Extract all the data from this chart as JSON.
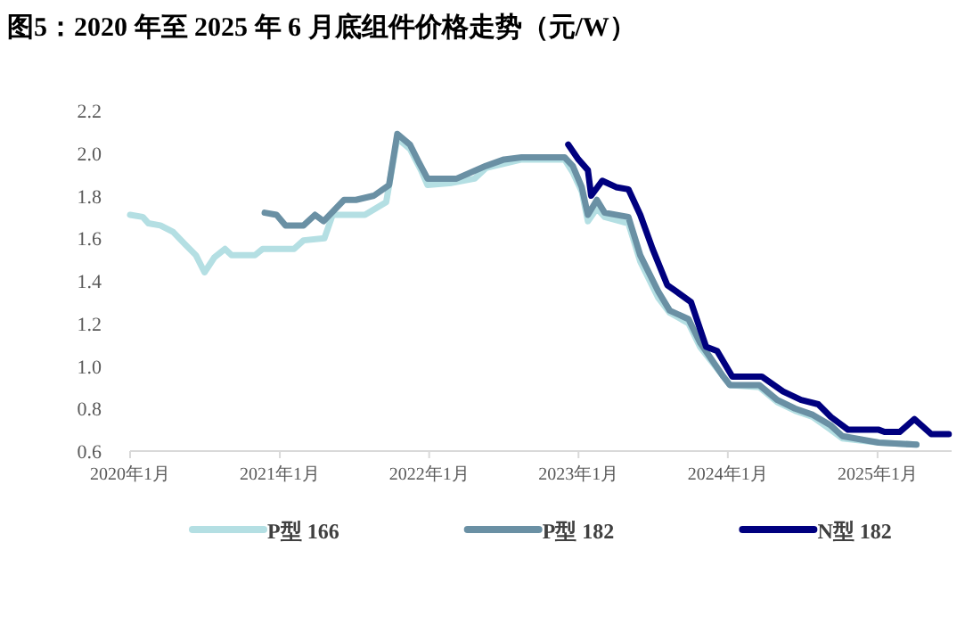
{
  "chart_data": {
    "type": "line",
    "title": "图5：2020 年至 2025 年 6 月底组件价格走势（元/W）",
    "xlim": [
      "2020-01-01",
      "2025-07-01"
    ],
    "xticks": [
      {
        "value": "2020-01",
        "label": "2020年1月"
      },
      {
        "value": "2021-01",
        "label": "2021年1月"
      },
      {
        "value": "2022-01",
        "label": "2022年1月"
      },
      {
        "value": "2023-01",
        "label": "2023年1月"
      },
      {
        "value": "2024-01",
        "label": "2024年1月"
      },
      {
        "value": "2025-01",
        "label": "2025年1月"
      }
    ],
    "ylim": [
      0.6,
      2.2
    ],
    "yticks": [
      0.6,
      0.8,
      {
        "value": 1,
        "label": "1.0"
      },
      1.2,
      1.4,
      1.6,
      1.8,
      {
        "value": 2,
        "label": "2.0"
      },
      2.2
    ],
    "legend": "bottom",
    "series": [
      {
        "name": "P型 166",
        "color": "#b4dfe3",
        "x": [
          "2020-01-01",
          "2020-02-01",
          "2020-02-15",
          "2020-03-15",
          "2020-04-15",
          "2020-05-15",
          "2020-06-10",
          "2020-07-01",
          "2020-07-25",
          "2020-08-20",
          "2020-09-05",
          "2020-11-01",
          "2020-11-20",
          "2021-02-05",
          "2021-02-28",
          "2021-04-20",
          "2021-05-10",
          "2021-07-28",
          "2021-09-18",
          "2021-10-15",
          "2021-11-15",
          "2021-12-12",
          "2021-12-28",
          "2022-02-25",
          "2022-04-22",
          "2022-05-20",
          "2022-07-03",
          "2022-08-15",
          "2022-11-28",
          "2022-12-18",
          "2023-01-09",
          "2023-01-24",
          "2023-02-15",
          "2023-03-06",
          "2023-05-03",
          "2023-06-01",
          "2023-07-15",
          "2023-08-12",
          "2023-09-27",
          "2023-10-25",
          "2023-12-21",
          "2024-01-06",
          "2024-03-18",
          "2024-05-01",
          "2024-06-13",
          "2024-07-27",
          "2024-09-09",
          "2024-10-07",
          "2025-01-04",
          "2025-04-06"
        ],
        "values": [
          1.71,
          1.7,
          1.67,
          1.66,
          1.63,
          1.57,
          1.52,
          1.44,
          1.51,
          1.55,
          1.52,
          1.52,
          1.55,
          1.55,
          1.59,
          1.6,
          1.71,
          1.71,
          1.77,
          2.07,
          2.02,
          1.92,
          1.85,
          1.86,
          1.88,
          1.93,
          1.95,
          1.97,
          1.97,
          1.91,
          1.82,
          1.68,
          1.74,
          1.7,
          1.67,
          1.49,
          1.32,
          1.25,
          1.2,
          1.09,
          0.95,
          0.91,
          0.9,
          0.83,
          0.79,
          0.76,
          0.7,
          0.66,
          0.64,
          0.63
        ]
      },
      {
        "name": "P型 182",
        "color": "#6a90a4",
        "x": [
          "2020-11-25",
          "2020-12-24",
          "2021-01-15",
          "2021-02-28",
          "2021-03-28",
          "2021-04-18",
          "2021-06-07",
          "2021-07-06",
          "2021-08-19",
          "2021-09-25",
          "2021-10-15",
          "2021-11-15",
          "2021-12-06",
          "2021-12-28",
          "2022-03-09",
          "2022-05-20",
          "2022-07-03",
          "2022-08-15",
          "2022-11-28",
          "2022-12-18",
          "2023-01-09",
          "2023-01-24",
          "2023-02-15",
          "2023-03-06",
          "2023-05-03",
          "2023-06-01",
          "2023-07-15",
          "2023-08-12",
          "2023-09-27",
          "2023-10-25",
          "2023-12-21",
          "2024-01-06",
          "2024-03-18",
          "2024-05-01",
          "2024-06-13",
          "2024-07-27",
          "2024-09-09",
          "2024-10-07",
          "2025-01-04",
          "2025-04-06"
        ],
        "values": [
          1.72,
          1.71,
          1.66,
          1.66,
          1.71,
          1.68,
          1.78,
          1.78,
          1.8,
          1.85,
          2.09,
          2.04,
          1.96,
          1.88,
          1.88,
          1.94,
          1.97,
          1.98,
          1.98,
          1.94,
          1.84,
          1.71,
          1.78,
          1.72,
          1.7,
          1.52,
          1.35,
          1.26,
          1.22,
          1.11,
          0.95,
          0.91,
          0.91,
          0.84,
          0.8,
          0.77,
          0.72,
          0.67,
          0.64,
          0.63
        ]
      },
      {
        "name": "N型 182",
        "color": "#00007f",
        "x": [
          "2022-12-07",
          "2023-01-01",
          "2023-01-24",
          "2023-02-01",
          "2023-02-28",
          "2023-04-03",
          "2023-05-03",
          "2023-06-01",
          "2023-07-01",
          "2023-08-06",
          "2023-08-28",
          "2023-10-03",
          "2023-11-09",
          "2023-12-06",
          "2024-01-12",
          "2024-03-24",
          "2024-05-15",
          "2024-06-28",
          "2024-08-09",
          "2024-09-09",
          "2024-10-21",
          "2025-01-04",
          "2025-01-18",
          "2025-02-24",
          "2025-04-01",
          "2025-05-12",
          "2025-06-24"
        ],
        "values": [
          2.04,
          1.97,
          1.92,
          1.8,
          1.87,
          1.84,
          1.83,
          1.71,
          1.55,
          1.38,
          1.35,
          1.3,
          1.09,
          1.07,
          0.95,
          0.95,
          0.88,
          0.84,
          0.82,
          0.76,
          0.7,
          0.7,
          0.69,
          0.69,
          0.75,
          0.68,
          0.68
        ]
      }
    ]
  }
}
